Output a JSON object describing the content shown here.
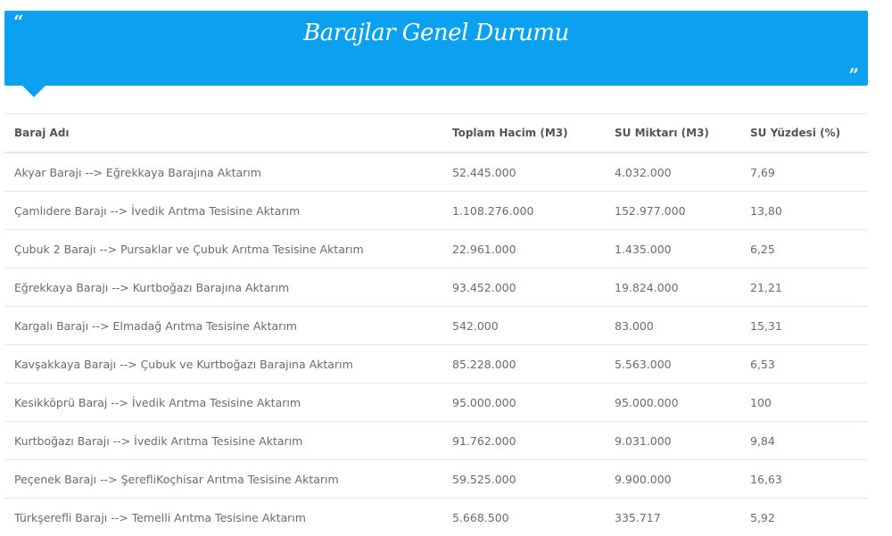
{
  "header": {
    "title": "Barajlar Genel Durumu",
    "open_quote": "“",
    "close_quote": "”",
    "color": "#0ba0f0"
  },
  "table": {
    "columns": [
      "Baraj Adı",
      "Toplam Hacim (M3)",
      "SU Miktarı (M3)",
      "SU Yüzdesi (%)"
    ],
    "rows": [
      [
        "Akyar Barajı --> Eğrekkaya Barajına Aktarım",
        "52.445.000",
        "4.032.000",
        "7,69"
      ],
      [
        "Çamlıdere Barajı --> İvedik Arıtma Tesisine Aktarım",
        "1.108.276.000",
        "152.977.000",
        "13,80"
      ],
      [
        "Çubuk 2 Barajı --> Pursaklar ve Çubuk Arıtma Tesisine Aktarım",
        "22.961.000",
        "1.435.000",
        "6,25"
      ],
      [
        "Eğrekkaya Barajı --> Kurtboğazı Barajına Aktarım",
        "93.452.000",
        "19.824.000",
        "21,21"
      ],
      [
        "Kargalı Barajı --> Elmadağ Arıtma Tesisine Aktarım",
        "542.000",
        "83.000",
        "15,31"
      ],
      [
        "Kavşakkaya Barajı --> Çubuk ve Kurtboğazı Barajına Aktarım",
        "85.228.000",
        "5.563.000",
        "6,53"
      ],
      [
        "Kesikköprü Baraj --> İvedik Arıtma Tesisine Aktarım",
        "95.000.000",
        "95.000.000",
        "100"
      ],
      [
        "Kurtboğazı Barajı --> İvedik Arıtma Tesisine Aktarım",
        "91.762.000",
        "9.031.000",
        "9,84"
      ],
      [
        "Peçenek Barajı --> ŞerefliKoçhisar Arıtma Tesisine Aktarım",
        "59.525.000",
        "9.900.000",
        "16,63"
      ],
      [
        "Türkşerefli Barajı --> Temelli Arıtma Tesisine Aktarım",
        "5.668.500",
        "335.717",
        "5,92"
      ]
    ]
  }
}
